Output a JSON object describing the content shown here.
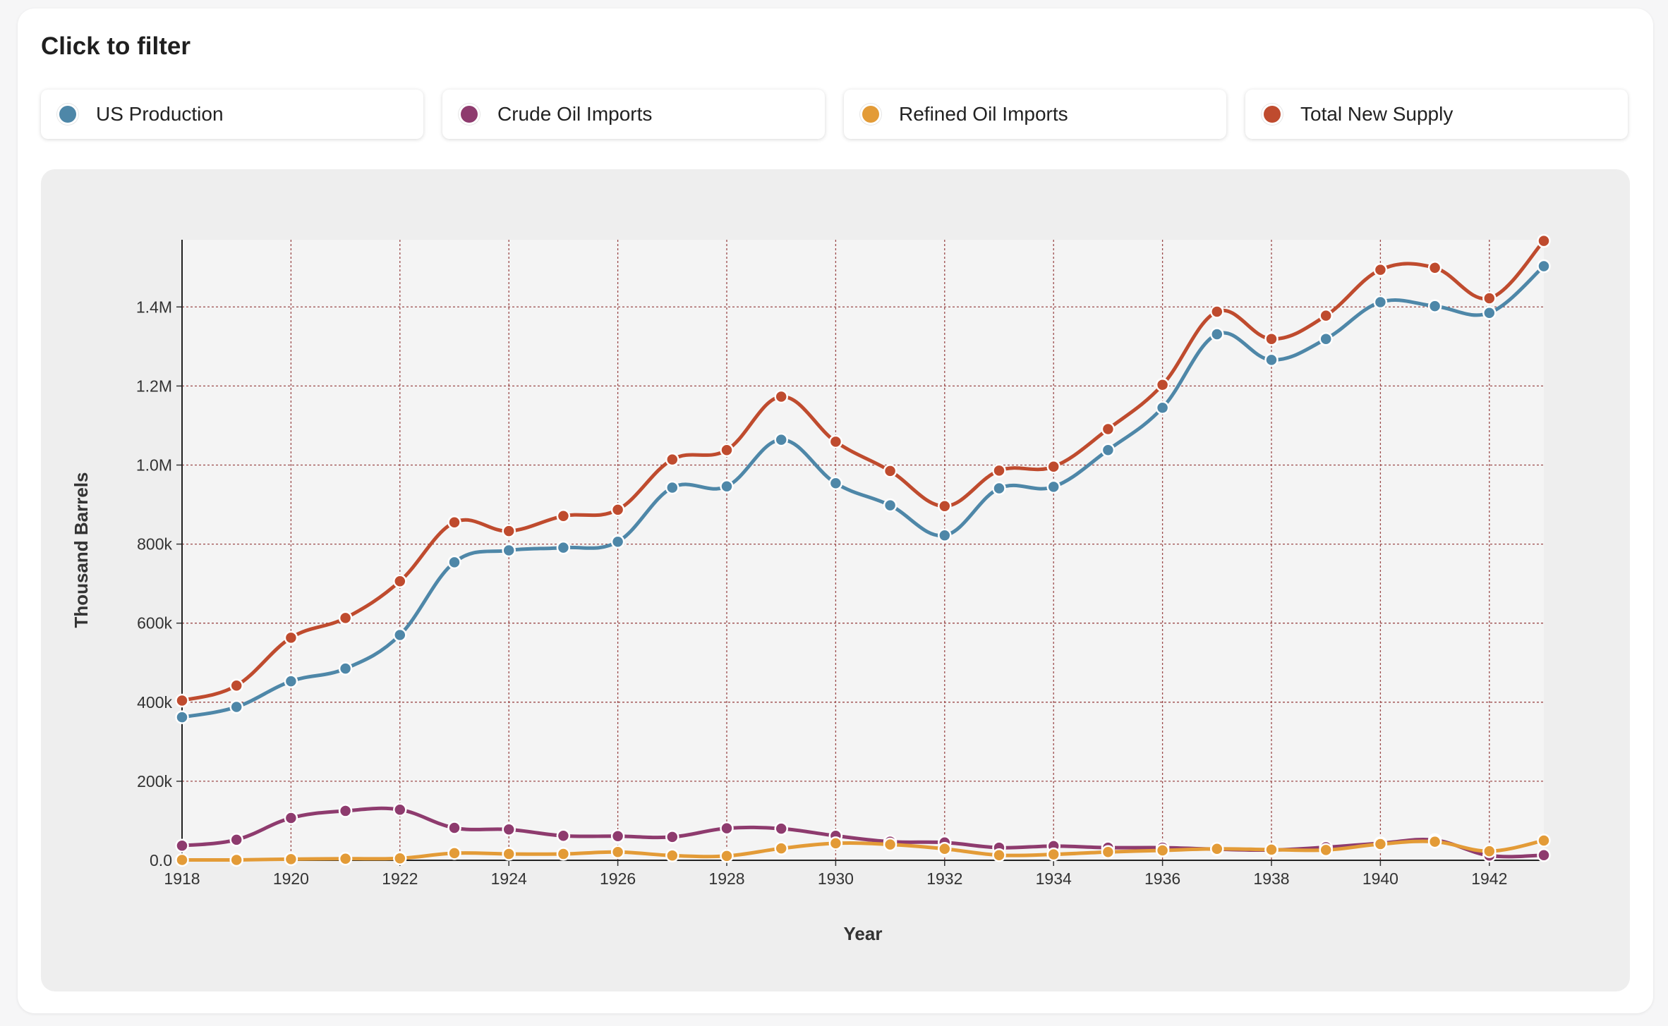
{
  "heading": "Click to filter",
  "colors": {
    "us_production": "#4e87a8",
    "crude_imports": "#8e3b6e",
    "refined_imports": "#e39b37",
    "total_supply": "#bf4b2e",
    "grid": "#9b4a4a"
  },
  "legend": [
    {
      "label": "US Production",
      "color": "#4e87a8"
    },
    {
      "label": "Crude Oil Imports",
      "color": "#8e3b6e"
    },
    {
      "label": "Refined Oil Imports",
      "color": "#e39b37"
    },
    {
      "label": "Total New Supply",
      "color": "#bf4b2e"
    }
  ],
  "chart_data": {
    "type": "line",
    "xlabel": "Year",
    "ylabel": "Thousand Barrels",
    "xlim": [
      1918,
      1943
    ],
    "ylim": [
      0,
      1570000
    ],
    "grid": true,
    "x": [
      1918,
      1919,
      1920,
      1921,
      1922,
      1923,
      1924,
      1925,
      1926,
      1927,
      1928,
      1929,
      1930,
      1931,
      1932,
      1933,
      1934,
      1935,
      1936,
      1937,
      1938,
      1939,
      1940,
      1941,
      1942,
      1943
    ],
    "x_ticks": [
      "1918",
      "1920",
      "1922",
      "1924",
      "1926",
      "1928",
      "1930",
      "1932",
      "1934",
      "1936",
      "1938",
      "1940",
      "1942"
    ],
    "y_ticks": [
      {
        "value": 0,
        "label": "0.0"
      },
      {
        "value": 200000,
        "label": "200k"
      },
      {
        "value": 400000,
        "label": "400k"
      },
      {
        "value": 600000,
        "label": "600k"
      },
      {
        "value": 800000,
        "label": "800k"
      },
      {
        "value": 1000000,
        "label": "1.0M"
      },
      {
        "value": 1200000,
        "label": "1.2M"
      },
      {
        "value": 1400000,
        "label": "1.4M"
      }
    ],
    "series": [
      {
        "name": "US Production",
        "color": "#4e87a8",
        "values": [
          362000,
          388000,
          453000,
          485000,
          570000,
          754000,
          784000,
          791000,
          806000,
          943000,
          946000,
          1064000,
          954000,
          898000,
          822000,
          941000,
          945000,
          1038000,
          1145000,
          1331000,
          1266000,
          1319000,
          1412000,
          1402000,
          1385000,
          1503000
        ]
      },
      {
        "name": "Crude Oil Imports",
        "color": "#8e3b6e",
        "values": [
          37000,
          52000,
          107000,
          125000,
          128000,
          82000,
          78000,
          62000,
          61000,
          59000,
          81000,
          80000,
          62000,
          47000,
          45000,
          32000,
          36000,
          32000,
          32000,
          28000,
          26000,
          33000,
          43000,
          51000,
          12000,
          13000
        ]
      },
      {
        "name": "Refined Oil Imports",
        "color": "#e39b37",
        "values": [
          1000,
          1000,
          3000,
          4000,
          5000,
          18000,
          16000,
          16000,
          21000,
          12000,
          11000,
          30000,
          43000,
          40000,
          29000,
          13000,
          15000,
          21000,
          25000,
          29000,
          27000,
          26000,
          41000,
          47000,
          23000,
          50000
        ]
      },
      {
        "name": "Total New Supply",
        "color": "#bf4b2e",
        "values": [
          404000,
          442000,
          563000,
          613000,
          706000,
          855000,
          833000,
          871000,
          887000,
          1014000,
          1038000,
          1173000,
          1059000,
          985000,
          896000,
          986000,
          996000,
          1091000,
          1203000,
          1388000,
          1319000,
          1378000,
          1494000,
          1499000,
          1422000,
          1567000
        ]
      }
    ]
  }
}
